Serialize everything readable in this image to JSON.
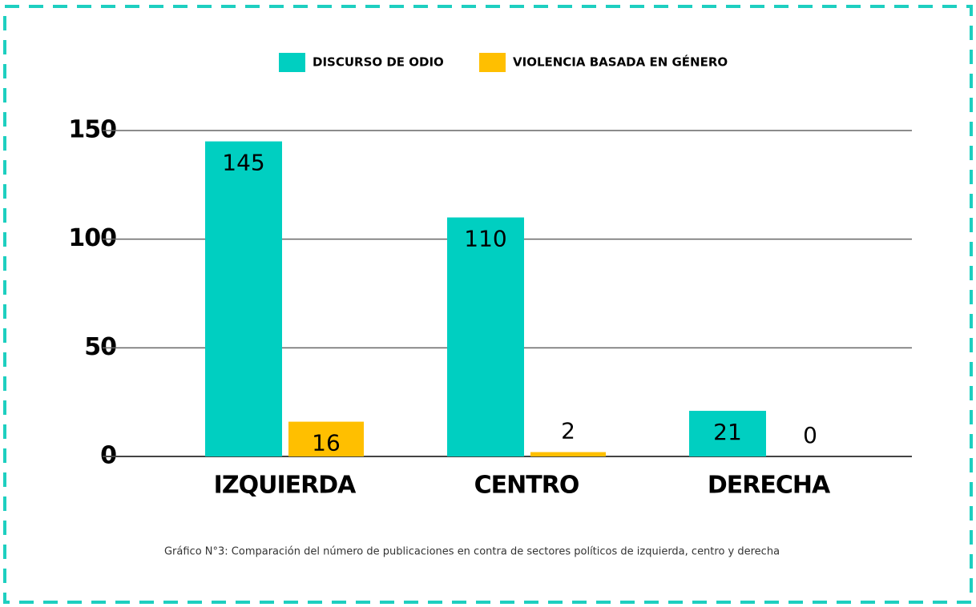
{
  "chart_data": {
    "type": "bar",
    "categories": [
      "IZQUIERDA",
      "CENTRO",
      "DERECHA"
    ],
    "series": [
      {
        "name": "DISCURSO DE ODIO",
        "color": "#00cfc1",
        "values": [
          145,
          110,
          21
        ]
      },
      {
        "name": "VIOLENCIA BASADA EN GÉNERO",
        "color": "#ffbf00",
        "values": [
          16,
          2,
          0
        ]
      }
    ],
    "ylim": [
      0,
      150
    ],
    "yticks": [
      0,
      50,
      100,
      150
    ],
    "grid": true,
    "legend": "top",
    "caption": "Gráfico N°3: Comparación del número de publicaciones en contra de sectores políticos de izquierda, centro y derecha"
  }
}
